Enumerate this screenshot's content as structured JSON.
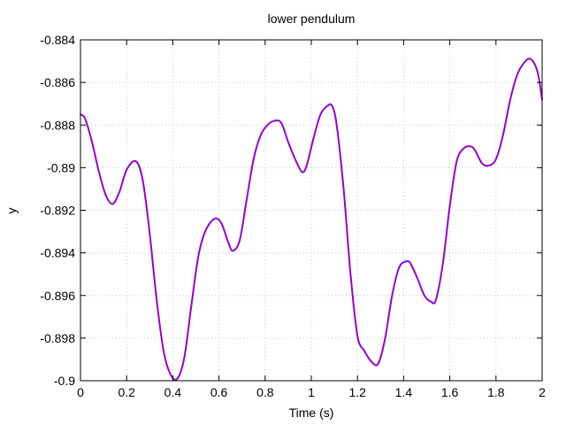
{
  "chart_data": {
    "type": "line",
    "title": "lower pendulum",
    "xlabel": "Time (s)",
    "ylabel": "y",
    "xlim": [
      0,
      2
    ],
    "ylim": [
      -0.9,
      -0.884
    ],
    "x_ticks": [
      0,
      0.2,
      0.4,
      0.6,
      0.8,
      1,
      1.2,
      1.4,
      1.6,
      1.8,
      2
    ],
    "x_tick_labels": [
      "0",
      "0.2",
      "0.4",
      "0.6",
      "0.8",
      "1",
      "1.2",
      "1.4",
      "1.6",
      "1.8",
      "2"
    ],
    "y_ticks": [
      -0.9,
      -0.898,
      -0.896,
      -0.894,
      -0.892,
      -0.89,
      -0.888,
      -0.886,
      -0.884
    ],
    "y_tick_labels": [
      "-0.9",
      "-0.898",
      "-0.896",
      "-0.894",
      "-0.892",
      "-0.89",
      "-0.888",
      "-0.886",
      "-0.884"
    ],
    "grid": true,
    "series": [
      {
        "color": "#9400D3",
        "x": [
          0,
          0.02,
          0.05,
          0.08,
          0.11,
          0.14,
          0.17,
          0.2,
          0.24,
          0.27,
          0.3,
          0.33,
          0.36,
          0.39,
          0.42,
          0.45,
          0.48,
          0.51,
          0.54,
          0.58,
          0.61,
          0.64,
          0.66,
          0.69,
          0.72,
          0.75,
          0.78,
          0.81,
          0.84,
          0.87,
          0.9,
          0.93,
          0.96,
          0.98,
          1.01,
          1.04,
          1.07,
          1.09,
          1.11,
          1.14,
          1.17,
          1.2,
          1.23,
          1.26,
          1.29,
          1.32,
          1.35,
          1.38,
          1.41,
          1.43,
          1.46,
          1.49,
          1.52,
          1.54,
          1.57,
          1.6,
          1.63,
          1.66,
          1.69,
          1.71,
          1.74,
          1.77,
          1.8,
          1.83,
          1.86,
          1.89,
          1.92,
          1.95,
          1.98,
          2.0
        ],
        "y": [
          -0.8875,
          -0.8877,
          -0.8888,
          -0.8902,
          -0.8913,
          -0.8917,
          -0.8911,
          -0.8901,
          -0.8897,
          -0.8906,
          -0.8931,
          -0.8962,
          -0.8986,
          -0.8997,
          -0.8999,
          -0.8989,
          -0.8965,
          -0.8942,
          -0.893,
          -0.8924,
          -0.8926,
          -0.8935,
          -0.8939,
          -0.8934,
          -0.8915,
          -0.8896,
          -0.8885,
          -0.888,
          -0.8878,
          -0.8879,
          -0.8888,
          -0.8896,
          -0.8902,
          -0.8899,
          -0.8886,
          -0.8875,
          -0.8871,
          -0.8871,
          -0.888,
          -0.891,
          -0.895,
          -0.8979,
          -0.8986,
          -0.8991,
          -0.8992,
          -0.898,
          -0.896,
          -0.8947,
          -0.8944,
          -0.8945,
          -0.8952,
          -0.896,
          -0.8963,
          -0.8962,
          -0.8945,
          -0.8918,
          -0.8897,
          -0.8891,
          -0.889,
          -0.8892,
          -0.8898,
          -0.8899,
          -0.8896,
          -0.8885,
          -0.8869,
          -0.8857,
          -0.8851,
          -0.8849,
          -0.8855,
          -0.8868
        ]
      }
    ]
  }
}
